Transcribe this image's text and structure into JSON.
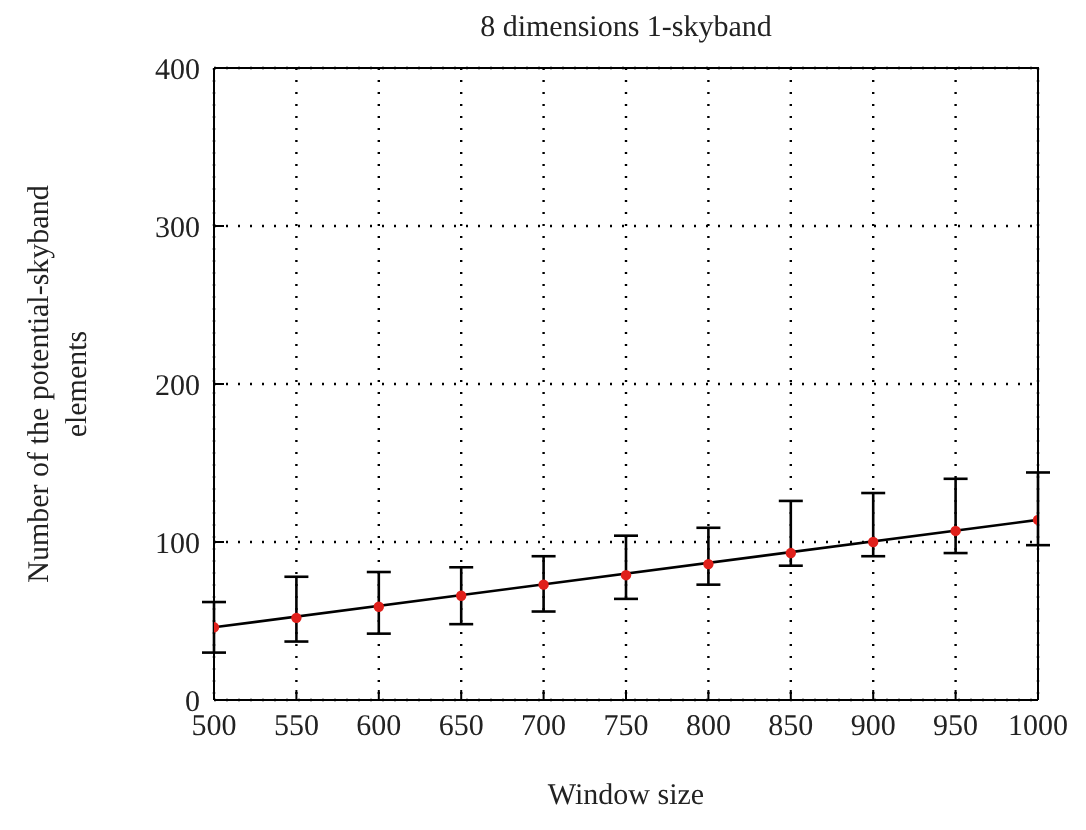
{
  "chart_data": {
    "type": "scatter",
    "title": "8 dimensions 1-skyband",
    "xlabel": "Window size",
    "ylabel": "Number of the potential-skyband elements",
    "x": [
      500,
      550,
      600,
      650,
      700,
      750,
      800,
      850,
      900,
      950,
      1000
    ],
    "series": [
      {
        "color": "#e0201b",
        "marker": "circle",
        "values": [
          46,
          52,
          59,
          66,
          73,
          79,
          86,
          93,
          100,
          107,
          114
        ],
        "errors": [
          [
            30,
            62
          ],
          [
            37,
            78
          ],
          [
            42,
            81
          ],
          [
            48,
            84
          ],
          [
            56,
            91
          ],
          [
            64,
            104
          ],
          [
            73,
            109
          ],
          [
            85,
            126
          ],
          [
            91,
            131
          ],
          [
            93,
            140
          ],
          [
            98,
            144
          ]
        ]
      },
      {
        "type": "line",
        "color": "#000000",
        "marker": "none",
        "x": [
          500,
          1000
        ],
        "values": [
          46,
          114
        ]
      }
    ],
    "xlim": [
      500,
      1000
    ],
    "xticks": [
      500,
      550,
      600,
      650,
      700,
      750,
      800,
      850,
      900,
      950,
      1000
    ],
    "ylim": [
      0,
      400
    ],
    "yticks": [
      0,
      100,
      200,
      300,
      400
    ],
    "grid": true
  }
}
